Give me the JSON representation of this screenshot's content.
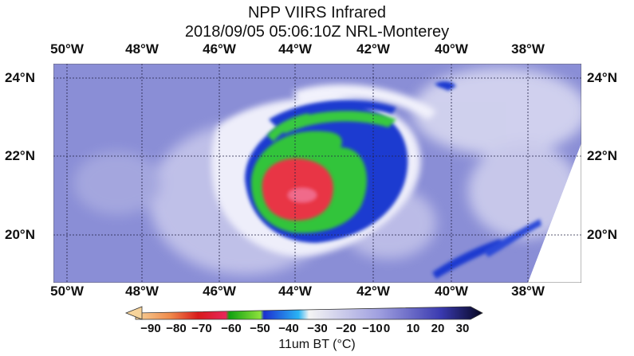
{
  "title": "NPP VIIRS Infrared",
  "subtitle": "2018/09/05 05:06:10Z NRL-Monterey",
  "lon_labels": [
    "50°W",
    "48°W",
    "46°W",
    "44°W",
    "42°W",
    "40°W",
    "38°W"
  ],
  "lat_labels": [
    "24°N",
    "22°N",
    "20°N"
  ],
  "colorbar": {
    "ticks": [
      "−90",
      "−80",
      "−70",
      "−60",
      "−50",
      "−40",
      "−30",
      "−20",
      "−10",
      "0",
      "10",
      "20",
      "30"
    ],
    "label": "11um BT (°C)",
    "colors": [
      "#f4c27a",
      "#f08a4a",
      "#d81b1b",
      "#e8255a",
      "#2ec32e",
      "#8ee23c",
      "#1c2fd0",
      "#2a9df4",
      "#f2f2f2",
      "#b9b9e8",
      "#7f7fd8",
      "#2a2a8a",
      "#0a0a2a"
    ]
  },
  "map": {
    "colors": {
      "background": "#8a8ed6",
      "cloud": "#e8e8f6",
      "blue_band": "#1a3ad0",
      "green": "#31c43a",
      "red": "#e83a4a",
      "no_data": "#ffffff"
    }
  }
}
